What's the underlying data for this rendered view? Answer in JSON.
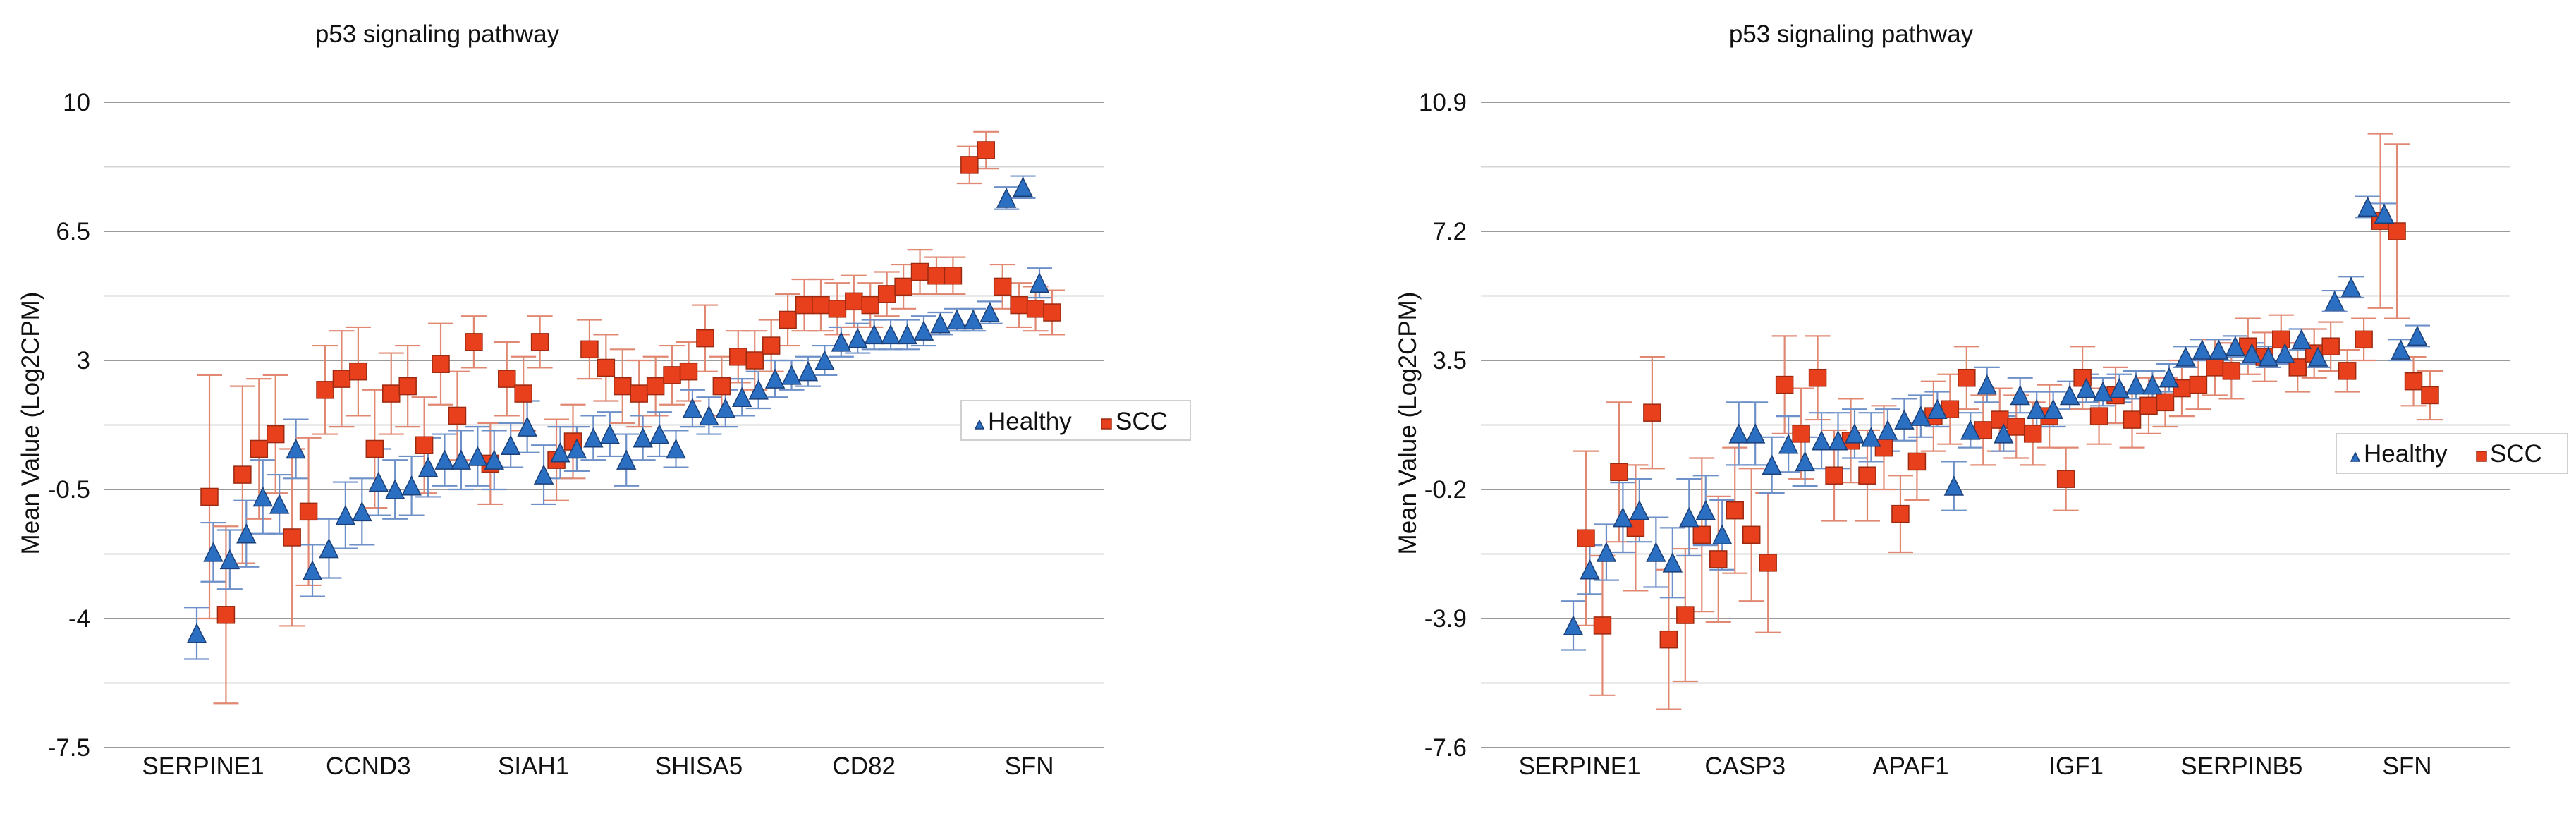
{
  "colors": {
    "healthy_fill": "#2a6fc1",
    "healthy_stroke": "#1b3f78",
    "scc_fill": "#e8401c",
    "scc_stroke": "#9c2a10",
    "healthy_err": "#6e90c8",
    "scc_err": "#e08872"
  },
  "chart_data": [
    {
      "type": "scatter",
      "title": "p53 signaling pathway",
      "ylabel": "Mean Value (Log2CPM)",
      "xlabel": "",
      "ylim": [
        -7.5,
        10
      ],
      "yticks": [
        -7.5,
        -4,
        -0.5,
        3,
        6.5,
        10
      ],
      "yticks_text": [
        "-7.5",
        "-4",
        "-0.5",
        "3",
        "6.5",
        "10"
      ],
      "x_tick_labels": [
        {
          "index": 1,
          "label": "SERPINE1"
        },
        {
          "index": 11,
          "label": "CCND3"
        },
        {
          "index": 21,
          "label": "SIAH1"
        },
        {
          "index": 31,
          "label": "SHISA5"
        },
        {
          "index": 41,
          "label": "CD82"
        },
        {
          "index": 51,
          "label": "SFN"
        }
      ],
      "legend": {
        "position": "right",
        "labels": [
          "Healthy",
          "SCC"
        ]
      },
      "n_points": 52,
      "series": [
        {
          "name": "Healthy",
          "marker": "triangle",
          "values": [
            -4.4,
            -2.2,
            -2.4,
            -1.7,
            -0.7,
            -0.9,
            0.6,
            -2.7,
            -2.1,
            -1.2,
            -1.1,
            -0.3,
            -0.5,
            -0.4,
            0.1,
            0.3,
            0.3,
            0.4,
            0.3,
            0.7,
            1.2,
            -0.1,
            0.5,
            0.6,
            0.9,
            1.0,
            0.3,
            0.9,
            1.0,
            0.6,
            1.7,
            1.5,
            1.7,
            2.0,
            2.2,
            2.5,
            2.6,
            2.7,
            3.0,
            3.5,
            3.6,
            3.7,
            3.7,
            3.7,
            3.8,
            4.0,
            4.1,
            4.1,
            4.3,
            7.4,
            7.7,
            5.1
          ],
          "err": [
            0.7,
            0.8,
            0.8,
            0.9,
            1.0,
            0.8,
            0.8,
            0.7,
            0.8,
            0.9,
            0.9,
            0.9,
            0.8,
            0.8,
            0.8,
            0.7,
            0.8,
            0.8,
            0.8,
            0.6,
            0.7,
            0.8,
            0.7,
            0.6,
            0.6,
            0.6,
            0.7,
            0.6,
            0.6,
            0.5,
            0.5,
            0.5,
            0.5,
            0.5,
            0.5,
            0.5,
            0.4,
            0.4,
            0.4,
            0.4,
            0.4,
            0.4,
            0.4,
            0.4,
            0.4,
            0.3,
            0.3,
            0.3,
            0.3,
            0.3,
            0.3,
            0.4
          ]
        },
        {
          "name": "SCC",
          "marker": "square",
          "values": [
            -0.7,
            -3.9,
            -0.1,
            0.6,
            1.0,
            -1.8,
            -1.1,
            2.2,
            2.5,
            2.7,
            0.6,
            2.1,
            2.3,
            0.7,
            2.9,
            1.5,
            3.5,
            0.2,
            2.5,
            2.1,
            3.5,
            0.3,
            0.8,
            3.3,
            2.8,
            2.3,
            2.1,
            2.3,
            2.6,
            2.7,
            3.6,
            2.3,
            3.1,
            3.0,
            3.4,
            4.1,
            4.5,
            4.5,
            4.4,
            4.6,
            4.5,
            4.8,
            5.0,
            5.4,
            5.3,
            5.3,
            8.3,
            8.7,
            5.0,
            4.5,
            4.4,
            4.3
          ],
          "err": [
            3.3,
            2.4,
            2.4,
            1.9,
            1.6,
            2.4,
            2.0,
            1.2,
            1.3,
            1.2,
            1.6,
            1.1,
            1.1,
            1.3,
            1.1,
            1.2,
            0.7,
            1.1,
            1.0,
            1.0,
            0.7,
            1.1,
            1.0,
            0.8,
            0.9,
            1.0,
            0.9,
            0.8,
            0.8,
            0.8,
            0.9,
            0.8,
            0.7,
            0.8,
            0.7,
            0.7,
            0.7,
            0.7,
            0.7,
            0.7,
            0.6,
            0.6,
            0.6,
            0.6,
            0.5,
            0.5,
            0.5,
            0.5,
            0.6,
            0.6,
            0.6,
            0.6
          ]
        }
      ]
    },
    {
      "type": "scatter",
      "title": "p53 signaling pathway",
      "ylabel": "Mean Value (Log2CPM)",
      "xlabel": "",
      "ylim": [
        -7.6,
        10.9
      ],
      "yticks": [
        -7.6,
        -3.9,
        -0.2,
        3.5,
        7.2,
        10.9
      ],
      "yticks_text": [
        "-7.6",
        "-3.9",
        "-0.2",
        "3.5",
        "7.2",
        "10.9"
      ],
      "x_tick_labels": [
        {
          "index": 1,
          "label": "SERPINE1"
        },
        {
          "index": 11,
          "label": "CASP3"
        },
        {
          "index": 21,
          "label": "APAF1"
        },
        {
          "index": 31,
          "label": "IGF1"
        },
        {
          "index": 41,
          "label": "SERPINB5"
        },
        {
          "index": 51,
          "label": "SFN"
        }
      ],
      "legend": {
        "position": "right",
        "labels": [
          "Healthy",
          "SCC"
        ]
      },
      "n_points": 52,
      "series": [
        {
          "name": "Healthy",
          "marker": "triangle",
          "values": [
            -4.1,
            -2.5,
            -2.0,
            -1.0,
            -0.8,
            -2.0,
            -2.3,
            -1.0,
            -0.8,
            -1.5,
            1.4,
            1.4,
            0.5,
            1.1,
            0.6,
            1.2,
            1.2,
            1.4,
            1.3,
            1.5,
            1.8,
            1.9,
            2.1,
            -0.1,
            1.5,
            2.8,
            1.4,
            2.5,
            2.1,
            2.1,
            2.5,
            2.7,
            2.6,
            2.7,
            2.8,
            2.8,
            3.0,
            3.6,
            3.8,
            3.8,
            3.9,
            3.7,
            3.6,
            3.7,
            4.1,
            3.6,
            5.2,
            5.6,
            7.9,
            7.7,
            3.8,
            4.2
          ],
          "err": [
            0.7,
            0.7,
            0.8,
            1.0,
            0.9,
            1.0,
            1.0,
            1.1,
            1.0,
            1.0,
            0.9,
            0.9,
            0.8,
            0.8,
            0.7,
            0.8,
            0.8,
            0.7,
            0.7,
            0.6,
            0.6,
            0.6,
            0.5,
            0.7,
            0.5,
            0.5,
            0.5,
            0.5,
            0.5,
            0.5,
            0.4,
            0.4,
            0.4,
            0.4,
            0.4,
            0.4,
            0.4,
            0.3,
            0.3,
            0.3,
            0.3,
            0.3,
            0.3,
            0.3,
            0.3,
            0.3,
            0.3,
            0.3,
            0.3,
            0.3,
            0.3,
            0.3
          ]
        },
        {
          "name": "SCC",
          "marker": "square",
          "values": [
            -1.6,
            -4.1,
            0.3,
            -1.3,
            2.0,
            -4.5,
            -3.8,
            -1.5,
            -2.2,
            -0.8,
            -1.5,
            -2.3,
            2.8,
            1.4,
            3.0,
            0.2,
            1.2,
            0.2,
            1.0,
            -0.9,
            0.6,
            1.9,
            2.1,
            3.0,
            1.5,
            1.8,
            1.6,
            1.4,
            1.9,
            0.1,
            3.0,
            1.9,
            2.5,
            1.8,
            2.2,
            2.3,
            2.7,
            2.8,
            3.3,
            3.2,
            3.9,
            3.6,
            4.1,
            3.3,
            3.7,
            3.9,
            3.2,
            4.1,
            7.5,
            7.2,
            2.9,
            2.5
          ],
          "err": [
            2.5,
            2.0,
            2.0,
            1.8,
            1.6,
            2.0,
            1.9,
            2.2,
            1.8,
            1.8,
            1.9,
            2.0,
            1.4,
            1.3,
            1.2,
            1.3,
            1.2,
            1.3,
            1.2,
            1.1,
            1.1,
            1.0,
            1.0,
            0.9,
            1.0,
            0.9,
            0.9,
            0.9,
            0.9,
            0.9,
            0.9,
            0.8,
            0.8,
            0.8,
            0.8,
            0.7,
            0.8,
            0.7,
            0.8,
            0.8,
            0.8,
            0.7,
            0.7,
            0.7,
            0.7,
            0.7,
            0.6,
            0.6,
            2.5,
            2.5,
            0.7,
            0.7
          ]
        }
      ]
    }
  ]
}
